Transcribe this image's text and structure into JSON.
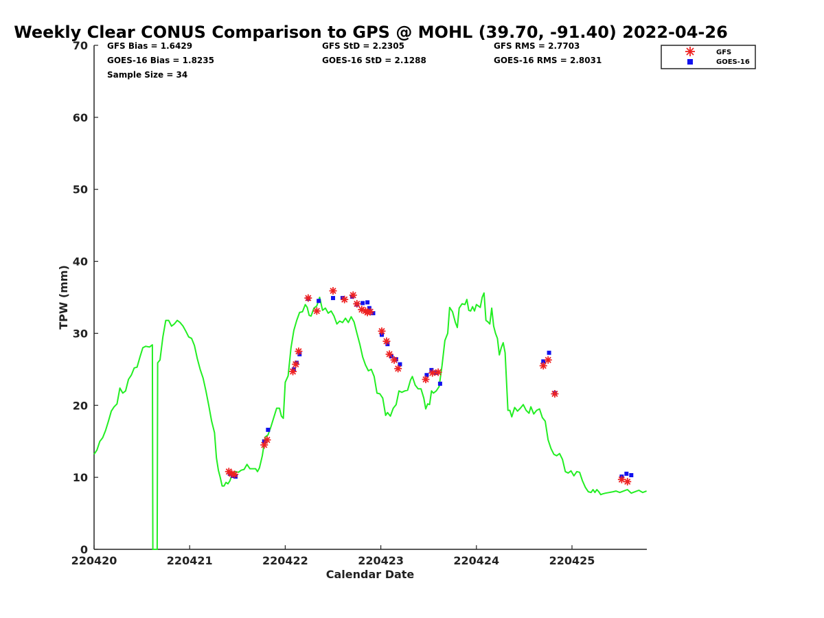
{
  "chart_data": {
    "type": "line",
    "title": "Weekly Clear CONUS Comparison to GPS @ MOHL (39.70, -91.40) 2022-04-26",
    "xlabel": "Calendar Date",
    "ylabel": "TPW (mm)",
    "xlim": [
      "220420",
      "220425 19:00"
    ],
    "ylim": [
      0,
      70
    ],
    "x_ticks": [
      "220420",
      "220421",
      "220422",
      "220423",
      "220424",
      "220425"
    ],
    "y_ticks": [
      "0",
      "10",
      "20",
      "30",
      "40",
      "50",
      "60",
      "70"
    ],
    "grid": false,
    "legend": {
      "position": "top-right",
      "entries": [
        "GFS",
        "GOES-16"
      ]
    },
    "stats": {
      "gfs_bias": "GFS Bias = 1.6429",
      "goes_bias": "GOES-16 Bias = 1.8235",
      "sample_size": "Sample Size = 34",
      "gfs_std": "GFS StD = 2.2305",
      "goes_std": "GOES-16 StD = 2.1288",
      "gfs_rms": "GFS RMS = 2.7703",
      "goes_rms": "GOES-16 RMS = 2.8031"
    },
    "colors": {
      "gps": "#22ee22",
      "gfs": "#ee2222",
      "goes": "#1111ee",
      "axis": "#222222"
    },
    "gps_series": {
      "color": "#22ee22",
      "points": [
        [
          0.0,
          13.2
        ],
        [
          0.03,
          13.8
        ],
        [
          0.06,
          15.0
        ],
        [
          0.09,
          15.5
        ],
        [
          0.12,
          16.5
        ],
        [
          0.15,
          17.8
        ],
        [
          0.18,
          19.2
        ],
        [
          0.21,
          19.8
        ],
        [
          0.24,
          20.2
        ],
        [
          0.27,
          22.4
        ],
        [
          0.3,
          21.7
        ],
        [
          0.33,
          22.0
        ],
        [
          0.36,
          23.6
        ],
        [
          0.39,
          24.2
        ],
        [
          0.42,
          25.2
        ],
        [
          0.45,
          25.3
        ],
        [
          0.48,
          26.7
        ],
        [
          0.51,
          28.0
        ],
        [
          0.54,
          28.2
        ],
        [
          0.58,
          28.1
        ],
        [
          0.61,
          28.4
        ],
        [
          0.615,
          0.0
        ],
        [
          0.66,
          0.0
        ],
        [
          0.665,
          25.9
        ],
        [
          0.69,
          26.3
        ],
        [
          0.72,
          29.5
        ],
        [
          0.75,
          31.8
        ],
        [
          0.78,
          31.8
        ],
        [
          0.81,
          31.0
        ],
        [
          0.84,
          31.3
        ],
        [
          0.87,
          31.8
        ],
        [
          0.9,
          31.5
        ],
        [
          0.93,
          31.0
        ],
        [
          0.96,
          30.3
        ],
        [
          0.99,
          29.5
        ],
        [
          1.02,
          29.3
        ],
        [
          1.05,
          28.3
        ],
        [
          1.08,
          26.5
        ],
        [
          1.11,
          25.0
        ],
        [
          1.14,
          23.8
        ],
        [
          1.17,
          22.0
        ],
        [
          1.2,
          20.0
        ],
        [
          1.23,
          17.8
        ],
        [
          1.26,
          16.2
        ],
        [
          1.28,
          12.7
        ],
        [
          1.3,
          11.0
        ],
        [
          1.32,
          10.0
        ],
        [
          1.34,
          8.8
        ],
        [
          1.36,
          8.8
        ],
        [
          1.38,
          9.3
        ],
        [
          1.4,
          9.1
        ],
        [
          1.42,
          9.5
        ],
        [
          1.45,
          10.6
        ],
        [
          1.48,
          10.8
        ],
        [
          1.51,
          10.7
        ],
        [
          1.54,
          11.0
        ],
        [
          1.57,
          11.1
        ],
        [
          1.6,
          11.8
        ],
        [
          1.63,
          11.2
        ],
        [
          1.66,
          11.2
        ],
        [
          1.69,
          11.2
        ],
        [
          1.71,
          10.8
        ],
        [
          1.73,
          11.3
        ],
        [
          1.76,
          13.0
        ],
        [
          1.79,
          15.6
        ],
        [
          1.82,
          15.9
        ],
        [
          1.85,
          17.0
        ],
        [
          1.88,
          18.3
        ],
        [
          1.91,
          19.6
        ],
        [
          1.94,
          19.6
        ],
        [
          1.96,
          18.5
        ],
        [
          1.98,
          18.2
        ],
        [
          2.0,
          23.2
        ],
        [
          2.03,
          24.1
        ],
        [
          2.06,
          28.0
        ],
        [
          2.09,
          30.4
        ],
        [
          2.12,
          31.8
        ],
        [
          2.15,
          32.9
        ],
        [
          2.18,
          33.0
        ],
        [
          2.21,
          34.0
        ],
        [
          2.23,
          33.6
        ],
        [
          2.25,
          32.5
        ],
        [
          2.27,
          32.4
        ],
        [
          2.3,
          33.5
        ],
        [
          2.33,
          33.8
        ],
        [
          2.36,
          35.0
        ],
        [
          2.39,
          33.2
        ],
        [
          2.42,
          33.5
        ],
        [
          2.45,
          32.8
        ],
        [
          2.48,
          33.1
        ],
        [
          2.51,
          32.4
        ],
        [
          2.54,
          31.3
        ],
        [
          2.57,
          31.7
        ],
        [
          2.6,
          31.5
        ],
        [
          2.63,
          32.1
        ],
        [
          2.66,
          31.5
        ],
        [
          2.69,
          32.3
        ],
        [
          2.72,
          31.6
        ],
        [
          2.75,
          30.0
        ],
        [
          2.78,
          28.5
        ],
        [
          2.81,
          26.7
        ],
        [
          2.84,
          25.6
        ],
        [
          2.87,
          24.8
        ],
        [
          2.9,
          25.0
        ],
        [
          2.93,
          24.0
        ],
        [
          2.96,
          21.7
        ],
        [
          2.99,
          21.6
        ],
        [
          3.02,
          21.0
        ],
        [
          3.05,
          18.6
        ],
        [
          3.07,
          19.0
        ],
        [
          3.1,
          18.5
        ],
        [
          3.13,
          19.6
        ],
        [
          3.16,
          20.1
        ],
        [
          3.19,
          22.0
        ],
        [
          3.22,
          21.8
        ],
        [
          3.25,
          22.0
        ],
        [
          3.28,
          22.1
        ],
        [
          3.31,
          23.5
        ],
        [
          3.33,
          24.0
        ],
        [
          3.36,
          22.8
        ],
        [
          3.39,
          22.3
        ],
        [
          3.42,
          22.3
        ],
        [
          3.45,
          21.0
        ],
        [
          3.47,
          19.5
        ],
        [
          3.49,
          20.2
        ],
        [
          3.51,
          20.1
        ],
        [
          3.53,
          22.0
        ],
        [
          3.55,
          21.7
        ],
        [
          3.58,
          22.0
        ],
        [
          3.61,
          22.6
        ],
        [
          3.64,
          25.5
        ],
        [
          3.67,
          29.0
        ],
        [
          3.7,
          30.0
        ],
        [
          3.72,
          33.6
        ],
        [
          3.75,
          33.0
        ],
        [
          3.78,
          31.5
        ],
        [
          3.8,
          30.8
        ],
        [
          3.82,
          33.5
        ],
        [
          3.85,
          34.1
        ],
        [
          3.88,
          34.0
        ],
        [
          3.9,
          34.7
        ],
        [
          3.92,
          33.2
        ],
        [
          3.94,
          33.1
        ],
        [
          3.96,
          33.7
        ],
        [
          3.98,
          33.1
        ],
        [
          4.0,
          34.0
        ],
        [
          4.02,
          33.8
        ],
        [
          4.04,
          33.6
        ],
        [
          4.06,
          35.0
        ],
        [
          4.08,
          35.6
        ],
        [
          4.1,
          31.8
        ],
        [
          4.12,
          31.6
        ],
        [
          4.14,
          31.3
        ],
        [
          4.16,
          33.5
        ],
        [
          4.18,
          31.0
        ],
        [
          4.2,
          30.0
        ],
        [
          4.22,
          29.3
        ],
        [
          4.24,
          27.0
        ],
        [
          4.26,
          28.0
        ],
        [
          4.28,
          28.7
        ],
        [
          4.3,
          27.3
        ],
        [
          4.33,
          19.3
        ],
        [
          4.35,
          19.3
        ],
        [
          4.37,
          18.4
        ],
        [
          4.4,
          19.7
        ],
        [
          4.43,
          19.2
        ],
        [
          4.46,
          19.6
        ],
        [
          4.49,
          20.1
        ],
        [
          4.52,
          19.3
        ],
        [
          4.55,
          18.9
        ],
        [
          4.57,
          19.8
        ],
        [
          4.6,
          18.8
        ],
        [
          4.63,
          19.3
        ],
        [
          4.66,
          19.5
        ],
        [
          4.69,
          18.3
        ],
        [
          4.72,
          17.8
        ],
        [
          4.75,
          15.2
        ],
        [
          4.78,
          14.0
        ],
        [
          4.81,
          13.2
        ],
        [
          4.84,
          13.0
        ],
        [
          4.87,
          13.3
        ],
        [
          4.9,
          12.5
        ],
        [
          4.93,
          10.8
        ],
        [
          4.96,
          10.6
        ],
        [
          4.99,
          10.9
        ],
        [
          5.02,
          10.2
        ],
        [
          5.05,
          10.8
        ],
        [
          5.08,
          10.7
        ],
        [
          5.11,
          9.5
        ],
        [
          5.14,
          8.6
        ],
        [
          5.17,
          8.0
        ],
        [
          5.2,
          7.9
        ],
        [
          5.22,
          8.3
        ],
        [
          5.24,
          7.9
        ],
        [
          5.26,
          8.3
        ],
        [
          5.28,
          8.0
        ],
        [
          5.3,
          7.6
        ],
        [
          5.32,
          7.7
        ],
        [
          5.35,
          7.8
        ],
        [
          5.39,
          7.9
        ],
        [
          5.43,
          8.0
        ],
        [
          5.46,
          8.1
        ],
        [
          5.5,
          7.9
        ],
        [
          5.54,
          8.1
        ],
        [
          5.58,
          8.3
        ],
        [
          5.62,
          7.8
        ],
        [
          5.66,
          8.0
        ],
        [
          5.7,
          8.2
        ],
        [
          5.74,
          7.9
        ],
        [
          5.78,
          8.1
        ]
      ]
    },
    "gfs_points": [
      [
        1.41,
        10.8
      ],
      [
        1.44,
        10.5
      ],
      [
        1.47,
        10.4
      ],
      [
        1.78,
        14.5
      ],
      [
        1.81,
        15.2
      ],
      [
        2.08,
        24.7
      ],
      [
        2.11,
        25.7
      ],
      [
        2.14,
        27.5
      ],
      [
        2.24,
        34.9
      ],
      [
        2.33,
        33.1
      ],
      [
        2.5,
        35.9
      ],
      [
        2.62,
        34.7
      ],
      [
        2.71,
        35.3
      ],
      [
        2.75,
        34.1
      ],
      [
        2.8,
        33.3
      ],
      [
        2.84,
        33.1
      ],
      [
        2.86,
        32.9
      ],
      [
        2.89,
        33.0
      ],
      [
        3.01,
        30.3
      ],
      [
        3.06,
        28.9
      ],
      [
        3.09,
        27.1
      ],
      [
        3.14,
        26.3
      ],
      [
        3.18,
        25.1
      ],
      [
        3.47,
        23.6
      ],
      [
        3.54,
        24.5
      ],
      [
        3.6,
        24.6
      ],
      [
        4.7,
        25.5
      ],
      [
        4.75,
        26.3
      ],
      [
        4.82,
        21.6
      ],
      [
        5.52,
        9.7
      ],
      [
        5.58,
        9.4
      ]
    ],
    "goes_points": [
      [
        1.42,
        10.5
      ],
      [
        1.45,
        10.2
      ],
      [
        1.48,
        10.1
      ],
      [
        1.78,
        15.0
      ],
      [
        1.82,
        16.6
      ],
      [
        2.09,
        25.0
      ],
      [
        2.12,
        25.9
      ],
      [
        2.15,
        27.1
      ],
      [
        2.24,
        34.8
      ],
      [
        2.35,
        34.5
      ],
      [
        2.5,
        34.9
      ],
      [
        2.6,
        34.9
      ],
      [
        2.7,
        35.1
      ],
      [
        2.75,
        34.0
      ],
      [
        2.81,
        34.2
      ],
      [
        2.86,
        34.3
      ],
      [
        2.88,
        33.5
      ],
      [
        2.92,
        32.8
      ],
      [
        3.01,
        29.8
      ],
      [
        3.07,
        28.5
      ],
      [
        3.11,
        26.8
      ],
      [
        3.16,
        26.4
      ],
      [
        3.2,
        25.7
      ],
      [
        3.48,
        24.2
      ],
      [
        3.53,
        24.9
      ],
      [
        3.58,
        24.5
      ],
      [
        3.62,
        23.0
      ],
      [
        4.7,
        26.1
      ],
      [
        4.76,
        27.3
      ],
      [
        4.82,
        21.7
      ],
      [
        5.52,
        10.1
      ],
      [
        5.57,
        10.5
      ],
      [
        5.62,
        10.3
      ]
    ]
  }
}
